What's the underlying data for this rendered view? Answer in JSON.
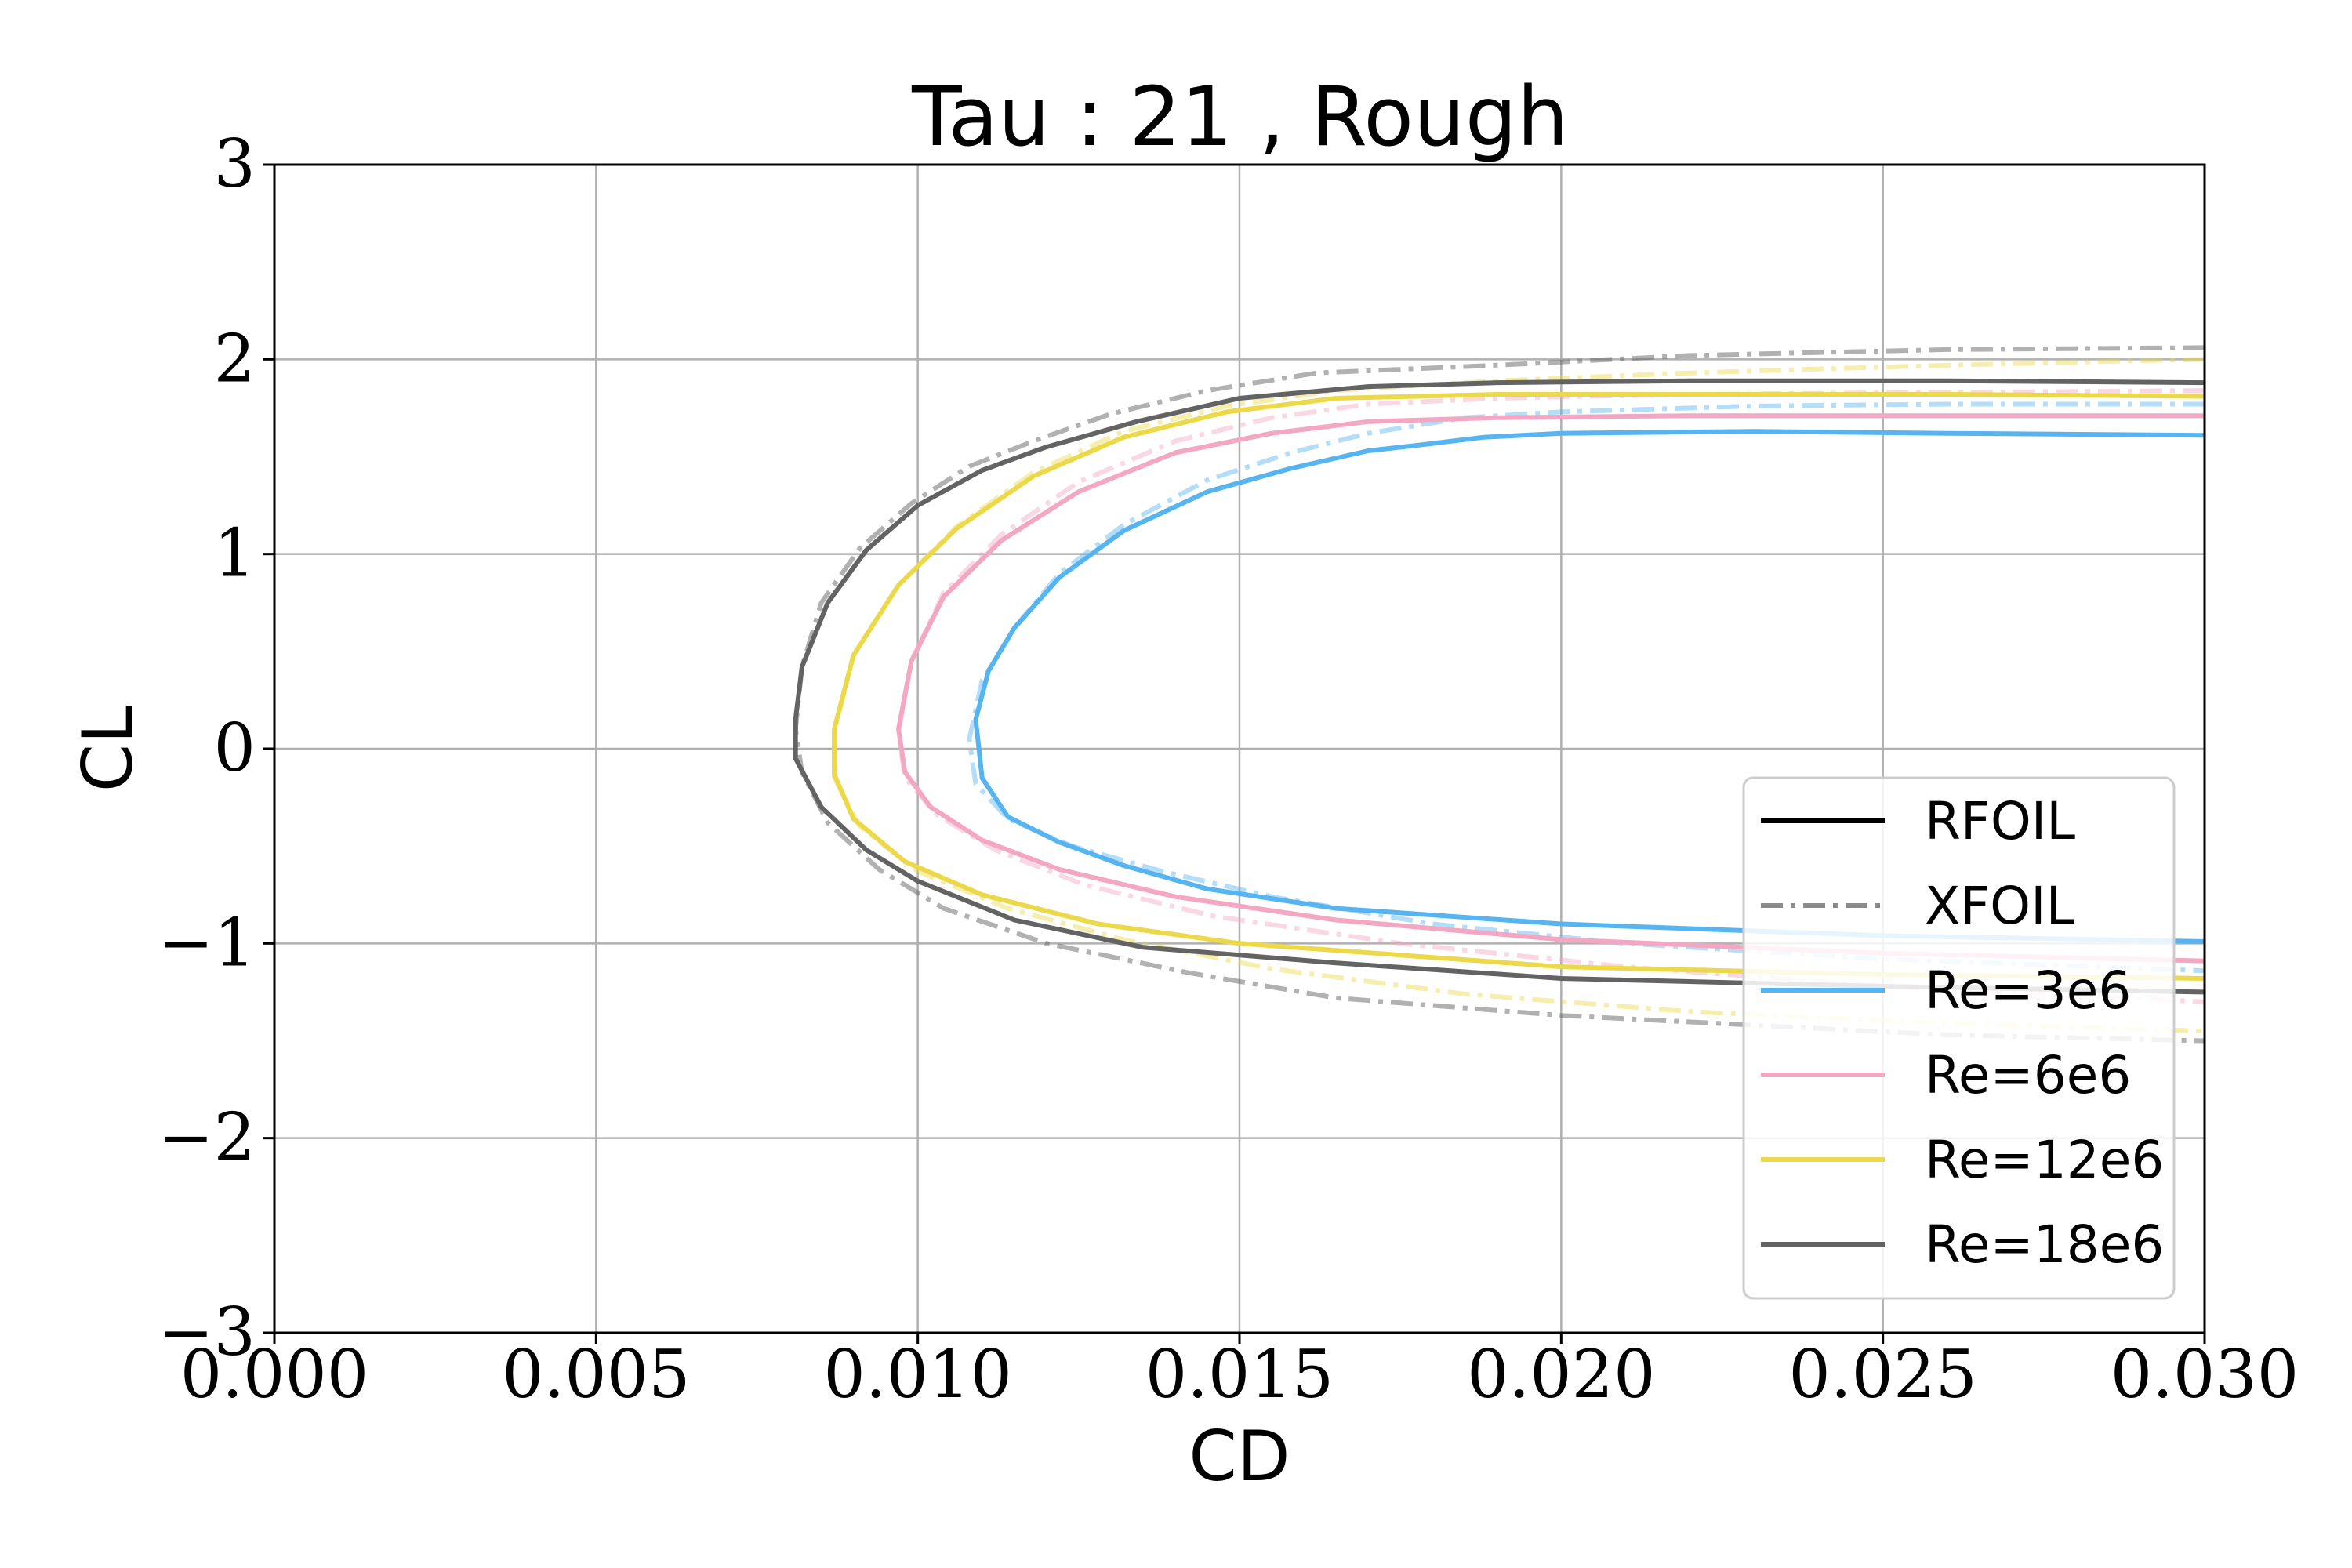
{
  "chart_data": {
    "type": "line",
    "title": "Tau : 21 , Rough",
    "xlabel": "CD",
    "ylabel": "CL",
    "xlim": [
      0.0,
      0.03
    ],
    "ylim": [
      -3,
      3
    ],
    "xticks": [
      "0.000",
      "0.005",
      "0.010",
      "0.015",
      "0.020",
      "0.025",
      "0.030"
    ],
    "yticks": [
      "3",
      "2",
      "1",
      "0",
      "−1",
      "−2",
      "−3"
    ],
    "grid": true,
    "legend_position": "lower-right",
    "legend": [
      {
        "label": "RFOIL",
        "style": "solid",
        "color": "#000000"
      },
      {
        "label": "XFOIL",
        "style": "dashdot",
        "color": "#808080"
      },
      {
        "label": "Re=3e6",
        "style": "solid",
        "color": "#56b4f0"
      },
      {
        "label": "Re=6e6",
        "style": "solid",
        "color": "#f4a7c3"
      },
      {
        "label": "Re=12e6",
        "style": "solid",
        "color": "#ecd94a"
      },
      {
        "label": "Re=18e6",
        "style": "solid",
        "color": "#636363"
      }
    ],
    "series": [
      {
        "name": "RFOIL Re=3e6",
        "color": "#56b4f0",
        "dash": "solid",
        "opacity": 1,
        "x": [
          0.03,
          0.026,
          0.023,
          0.02,
          0.0188,
          0.0178,
          0.017,
          0.0158,
          0.0145,
          0.0132,
          0.0122,
          0.0115,
          0.0111,
          0.0109,
          0.011,
          0.0114,
          0.0122,
          0.0132,
          0.0145,
          0.0165,
          0.02,
          0.025,
          0.03
        ],
        "y": [
          1.61,
          1.62,
          1.63,
          1.62,
          1.6,
          1.56,
          1.53,
          1.44,
          1.32,
          1.12,
          0.88,
          0.62,
          0.4,
          0.15,
          -0.15,
          -0.35,
          -0.48,
          -0.6,
          -0.72,
          -0.82,
          -0.9,
          -0.96,
          -0.99
        ]
      },
      {
        "name": "XFOIL Re=3e6",
        "color": "#56b4f0",
        "dash": "dashdot",
        "opacity": 0.45,
        "x": [
          0.03,
          0.026,
          0.023,
          0.02,
          0.0185,
          0.017,
          0.0158,
          0.0145,
          0.0132,
          0.0122,
          0.0115,
          0.011,
          0.0108,
          0.0109,
          0.0114,
          0.0124,
          0.0138,
          0.0155,
          0.018,
          0.021,
          0.025,
          0.03
        ],
        "y": [
          1.77,
          1.77,
          1.76,
          1.73,
          1.7,
          1.62,
          1.52,
          1.38,
          1.15,
          0.9,
          0.62,
          0.35,
          0.05,
          -0.18,
          -0.36,
          -0.5,
          -0.63,
          -0.76,
          -0.9,
          -1.0,
          -1.08,
          -1.14
        ]
      },
      {
        "name": "RFOIL Re=6e6",
        "color": "#f4a7c3",
        "dash": "solid",
        "opacity": 1,
        "x": [
          0.03,
          0.026,
          0.022,
          0.019,
          0.017,
          0.0155,
          0.014,
          0.0125,
          0.0113,
          0.0104,
          0.0099,
          0.0097,
          0.0098,
          0.0102,
          0.011,
          0.0122,
          0.014,
          0.0165,
          0.02,
          0.025,
          0.03
        ],
        "y": [
          1.71,
          1.71,
          1.71,
          1.7,
          1.68,
          1.62,
          1.52,
          1.32,
          1.07,
          0.78,
          0.45,
          0.1,
          -0.12,
          -0.3,
          -0.47,
          -0.62,
          -0.76,
          -0.88,
          -0.98,
          -1.05,
          -1.09
        ]
      },
      {
        "name": "XFOIL Re=6e6",
        "color": "#f4a7c3",
        "dash": "dashdot",
        "opacity": 0.45,
        "x": [
          0.03,
          0.026,
          0.022,
          0.019,
          0.017,
          0.0155,
          0.014,
          0.0125,
          0.0113,
          0.0104,
          0.0099,
          0.0097,
          0.0098,
          0.0103,
          0.0112,
          0.0126,
          0.0146,
          0.0175,
          0.021,
          0.025,
          0.03
        ],
        "y": [
          1.84,
          1.83,
          1.82,
          1.8,
          1.77,
          1.7,
          1.58,
          1.37,
          1.1,
          0.8,
          0.45,
          0.08,
          -0.15,
          -0.34,
          -0.52,
          -0.7,
          -0.86,
          -1.0,
          -1.12,
          -1.22,
          -1.3
        ]
      },
      {
        "name": "RFOIL Re=12e6",
        "color": "#ecd94a",
        "dash": "solid",
        "opacity": 1,
        "x": [
          0.03,
          0.026,
          0.022,
          0.019,
          0.0165,
          0.0148,
          0.0132,
          0.0118,
          0.0106,
          0.0097,
          0.009,
          0.0087,
          0.0087,
          0.009,
          0.0098,
          0.011,
          0.0128,
          0.015,
          0.0175,
          0.02,
          0.025,
          0.03
        ],
        "y": [
          1.81,
          1.82,
          1.82,
          1.82,
          1.8,
          1.73,
          1.6,
          1.4,
          1.13,
          0.84,
          0.48,
          0.1,
          -0.13,
          -0.36,
          -0.58,
          -0.75,
          -0.9,
          -1.0,
          -1.06,
          -1.12,
          -1.16,
          -1.18
        ]
      },
      {
        "name": "XFOIL Re=12e6",
        "color": "#ecd94a",
        "dash": "dashdot",
        "opacity": 0.45,
        "x": [
          0.03,
          0.026,
          0.022,
          0.019,
          0.0165,
          0.0148,
          0.0132,
          0.0118,
          0.0106,
          0.0097,
          0.009,
          0.0087,
          0.0087,
          0.0091,
          0.01,
          0.0114,
          0.0132,
          0.0155,
          0.0185,
          0.022,
          0.026,
          0.03
        ],
        "y": [
          2.0,
          1.97,
          1.93,
          1.89,
          1.84,
          1.76,
          1.63,
          1.42,
          1.14,
          0.84,
          0.48,
          0.08,
          -0.15,
          -0.4,
          -0.63,
          -0.82,
          -0.98,
          -1.13,
          -1.26,
          -1.35,
          -1.41,
          -1.45
        ]
      },
      {
        "name": "RFOIL Re=18e6",
        "color": "#636363",
        "dash": "solid",
        "opacity": 1,
        "x": [
          0.03,
          0.026,
          0.022,
          0.019,
          0.017,
          0.015,
          0.0134,
          0.012,
          0.011,
          0.01,
          0.0092,
          0.0086,
          0.0082,
          0.0081,
          0.0081,
          0.0085,
          0.0092,
          0.01,
          0.0115,
          0.0135,
          0.0165,
          0.02,
          0.025,
          0.03
        ],
        "y": [
          1.88,
          1.89,
          1.89,
          1.88,
          1.86,
          1.8,
          1.68,
          1.55,
          1.43,
          1.25,
          1.02,
          0.75,
          0.42,
          0.15,
          -0.05,
          -0.3,
          -0.52,
          -0.68,
          -0.88,
          -1.02,
          -1.1,
          -1.18,
          -1.22,
          -1.25
        ]
      },
      {
        "name": "XFOIL Re=18e6",
        "color": "#636363",
        "dash": "dashdot",
        "opacity": 0.5,
        "x": [
          0.03,
          0.026,
          0.022,
          0.019,
          0.0162,
          0.0145,
          0.013,
          0.0118,
          0.0108,
          0.0099,
          0.0091,
          0.0085,
          0.0082,
          0.0081,
          0.0082,
          0.0086,
          0.0094,
          0.0104,
          0.012,
          0.0142,
          0.0165,
          0.02,
          0.023,
          0.026,
          0.03
        ],
        "y": [
          2.06,
          2.05,
          2.02,
          1.97,
          1.93,
          1.84,
          1.72,
          1.58,
          1.45,
          1.26,
          1.03,
          0.75,
          0.42,
          0.1,
          -0.12,
          -0.38,
          -0.62,
          -0.82,
          -1.0,
          -1.15,
          -1.28,
          -1.37,
          -1.42,
          -1.47,
          -1.5
        ]
      }
    ]
  }
}
